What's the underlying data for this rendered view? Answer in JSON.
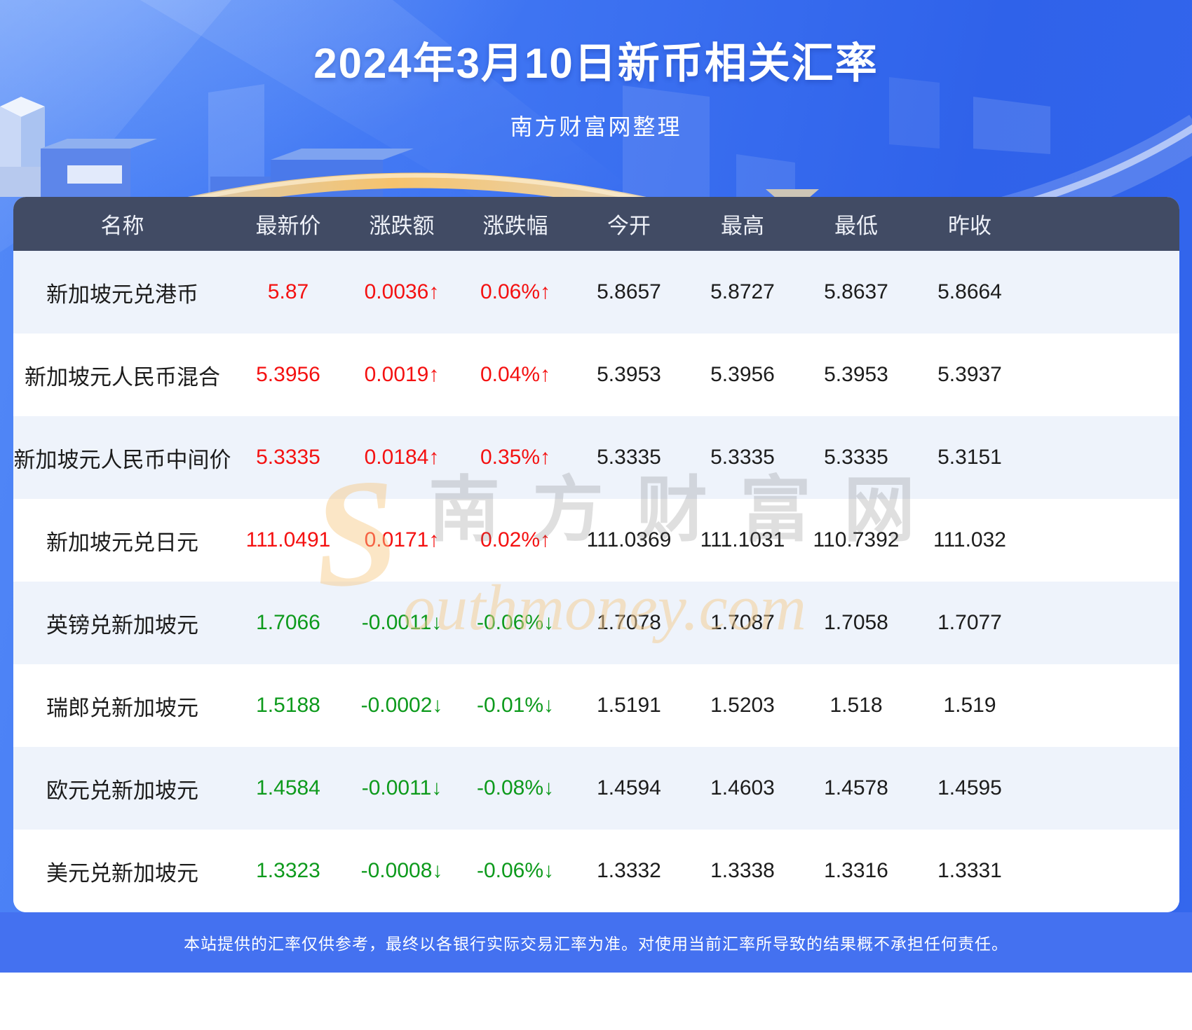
{
  "page": {
    "title": "2024年3月10日新币相关汇率",
    "subtitle": "南方财富网整理",
    "disclaimer": "本站提供的汇率仅供参考，最终以各银行实际交易汇率为准。对使用当前汇率所导致的结果概不承担任何责任。"
  },
  "watermark": {
    "s": "S",
    "cn": "南方财富网",
    "en": "outhmoney.com"
  },
  "colors": {
    "up_red": "#f41111",
    "down_green": "#0d9a1c",
    "header_bg": "#414b64",
    "row_alt_bg": "#eef3fb",
    "footer_bar": "#4471f0",
    "hero_blue": "#3467ed",
    "accent_gold": "#f6c36d"
  },
  "chart_data": {
    "type": "table",
    "title": "2024年3月10日新币相关汇率",
    "subtitle": "南方财富网整理",
    "columns": [
      "名称",
      "最新价",
      "涨跌额",
      "涨跌幅",
      "今开",
      "最高",
      "最低",
      "昨收"
    ],
    "column_keys": [
      "name",
      "latest",
      "change",
      "pct",
      "open",
      "high",
      "low",
      "prev-close"
    ],
    "rows": [
      [
        "新加坡元兑港币",
        "5.87",
        "0.0036↑",
        "0.06%↑",
        "5.8657",
        "5.8727",
        "5.8637",
        "5.8664"
      ],
      [
        "新加坡元人民币混合",
        "5.3956",
        "0.0019↑",
        "0.04%↑",
        "5.3953",
        "5.3956",
        "5.3953",
        "5.3937"
      ],
      [
        "新加坡元人民币中间价",
        "5.3335",
        "0.0184↑",
        "0.35%↑",
        "5.3335",
        "5.3335",
        "5.3335",
        "5.3151"
      ],
      [
        "新加坡元兑日元",
        "111.0491",
        "0.0171↑",
        "0.02%↑",
        "111.0369",
        "111.1031",
        "110.7392",
        "111.032"
      ],
      [
        "英镑兑新加坡元",
        "1.7066",
        "-0.0011↓",
        "-0.06%↓",
        "1.7078",
        "1.7087",
        "1.7058",
        "1.7077"
      ],
      [
        "瑞郎兑新加坡元",
        "1.5188",
        "-0.0002↓",
        "-0.01%↓",
        "1.5191",
        "1.5203",
        "1.518",
        "1.519"
      ],
      [
        "欧元兑新加坡元",
        "1.4584",
        "-0.0011↓",
        "-0.08%↓",
        "1.4594",
        "1.4603",
        "1.4578",
        "1.4595"
      ],
      [
        "美元兑新加坡元",
        "1.3323",
        "-0.0008↓",
        "-0.06%↓",
        "1.3332",
        "1.3338",
        "1.3316",
        "1.3331"
      ]
    ],
    "trends": [
      "up",
      "up",
      "up",
      "up",
      "down",
      "down",
      "down",
      "down"
    ]
  }
}
